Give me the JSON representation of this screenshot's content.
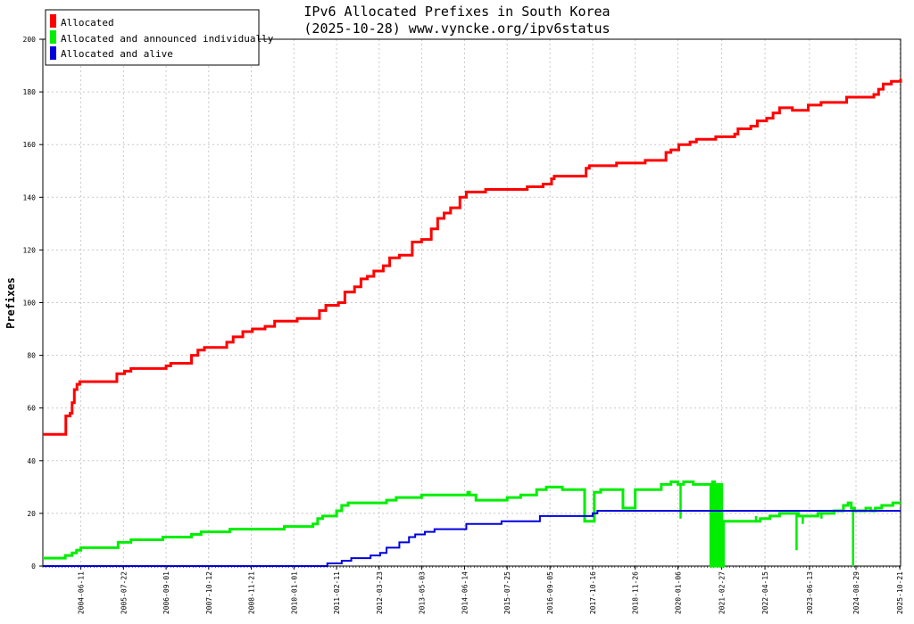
{
  "chart_data": {
    "type": "line",
    "title": "IPv6 Allocated Prefixes in South Korea",
    "subtitle": "(2025-10-28) www.vyncke.org/ipv6status",
    "xlabel": "",
    "ylabel": "Prefixes",
    "ylim": [
      0,
      200
    ],
    "yticks": [
      0,
      20,
      40,
      60,
      80,
      100,
      120,
      140,
      160,
      180,
      200
    ],
    "xlim": [
      "2003-06-15",
      "2025-10-28"
    ],
    "xticks": [
      "2004-06-11",
      "2005-07-22",
      "2006-09-01",
      "2007-10-12",
      "2008-11-21",
      "2010-01-01",
      "2011-02-11",
      "2012-03-23",
      "2013-05-03",
      "2014-06-14",
      "2015-07-25",
      "2016-09-05",
      "2017-10-16",
      "2018-11-26",
      "2020-01-06",
      "2021-02-27",
      "2022-04-15",
      "2023-06-13",
      "2024-08-29",
      "2025-10-21"
    ],
    "grid": true,
    "legend_position": "top-left",
    "series": [
      {
        "name": "Allocated",
        "color": "#ff0000",
        "points": [
          [
            "2003-06-15",
            50
          ],
          [
            "2004-01-10",
            50
          ],
          [
            "2004-01-20",
            57
          ],
          [
            "2004-03-01",
            58
          ],
          [
            "2004-03-20",
            62
          ],
          [
            "2004-04-10",
            67
          ],
          [
            "2004-05-05",
            69
          ],
          [
            "2004-06-01",
            70
          ],
          [
            "2005-04-01",
            70
          ],
          [
            "2005-05-20",
            73
          ],
          [
            "2005-08-01",
            74
          ],
          [
            "2005-10-01",
            75
          ],
          [
            "2006-08-01",
            75
          ],
          [
            "2006-09-01",
            76
          ],
          [
            "2006-10-15",
            77
          ],
          [
            "2007-03-01",
            77
          ],
          [
            "2007-05-01",
            80
          ],
          [
            "2007-07-01",
            82
          ],
          [
            "2007-09-01",
            83
          ],
          [
            "2008-02-01",
            83
          ],
          [
            "2008-04-01",
            85
          ],
          [
            "2008-06-01",
            87
          ],
          [
            "2008-09-01",
            89
          ],
          [
            "2008-12-01",
            90
          ],
          [
            "2009-04-01",
            91
          ],
          [
            "2009-07-01",
            93
          ],
          [
            "2010-01-01",
            93
          ],
          [
            "2010-02-01",
            94
          ],
          [
            "2010-07-01",
            94
          ],
          [
            "2010-09-01",
            97
          ],
          [
            "2010-11-01",
            99
          ],
          [
            "2011-03-01",
            100
          ],
          [
            "2011-05-01",
            104
          ],
          [
            "2011-08-01",
            106
          ],
          [
            "2011-10-01",
            109
          ],
          [
            "2011-12-01",
            110
          ],
          [
            "2012-02-01",
            112
          ],
          [
            "2012-05-01",
            114
          ],
          [
            "2012-07-01",
            117
          ],
          [
            "2012-10-01",
            118
          ],
          [
            "2013-02-01",
            123
          ],
          [
            "2013-05-01",
            124
          ],
          [
            "2013-08-01",
            128
          ],
          [
            "2013-10-01",
            132
          ],
          [
            "2013-12-01",
            134
          ],
          [
            "2014-02-01",
            136
          ],
          [
            "2014-05-01",
            140
          ],
          [
            "2014-07-01",
            142
          ],
          [
            "2015-01-01",
            143
          ],
          [
            "2016-02-01",
            144
          ],
          [
            "2016-07-01",
            145
          ],
          [
            "2016-09-20",
            147
          ],
          [
            "2016-10-15",
            148
          ],
          [
            "2017-06-01",
            148
          ],
          [
            "2017-08-15",
            151
          ],
          [
            "2017-09-15",
            152
          ],
          [
            "2018-06-01",
            153
          ],
          [
            "2019-03-01",
            154
          ],
          [
            "2019-08-01",
            154
          ],
          [
            "2019-09-15",
            157
          ],
          [
            "2019-11-01",
            158
          ],
          [
            "2020-01-15",
            160
          ],
          [
            "2020-05-01",
            161
          ],
          [
            "2020-07-01",
            162
          ],
          [
            "2021-01-01",
            163
          ],
          [
            "2021-07-01",
            164
          ],
          [
            "2021-08-01",
            166
          ],
          [
            "2021-12-01",
            167
          ],
          [
            "2022-02-01",
            169
          ],
          [
            "2022-05-01",
            170
          ],
          [
            "2022-07-01",
            172
          ],
          [
            "2022-09-01",
            174
          ],
          [
            "2023-01-01",
            173
          ],
          [
            "2023-06-01",
            175
          ],
          [
            "2023-10-01",
            176
          ],
          [
            "2024-04-01",
            176
          ],
          [
            "2024-06-01",
            178
          ],
          [
            "2025-01-01",
            178
          ],
          [
            "2025-02-15",
            179
          ],
          [
            "2025-04-01",
            181
          ],
          [
            "2025-05-15",
            183
          ],
          [
            "2025-08-01",
            184
          ],
          [
            "2025-10-28",
            185
          ]
        ]
      },
      {
        "name": "Allocated and announced individually",
        "color": "#00ee00",
        "points": [
          [
            "2003-06-15",
            3
          ],
          [
            "2003-12-01",
            3
          ],
          [
            "2004-01-15",
            4
          ],
          [
            "2004-03-20",
            5
          ],
          [
            "2004-05-01",
            6
          ],
          [
            "2004-06-11",
            7
          ],
          [
            "2005-04-01",
            7
          ],
          [
            "2005-06-01",
            9
          ],
          [
            "2005-10-01",
            10
          ],
          [
            "2006-08-01",
            11
          ],
          [
            "2007-05-01",
            12
          ],
          [
            "2007-08-01",
            13
          ],
          [
            "2008-05-01",
            14
          ],
          [
            "2009-06-01",
            14
          ],
          [
            "2009-10-01",
            15
          ],
          [
            "2010-06-01",
            15
          ],
          [
            "2010-07-01",
            16
          ],
          [
            "2010-08-15",
            18
          ],
          [
            "2010-10-01",
            19
          ],
          [
            "2011-02-11",
            21
          ],
          [
            "2011-04-01",
            23
          ],
          [
            "2011-06-01",
            24
          ],
          [
            "2012-04-01",
            24
          ],
          [
            "2012-06-01",
            25
          ],
          [
            "2012-09-01",
            26
          ],
          [
            "2013-03-01",
            26
          ],
          [
            "2013-05-01",
            27
          ],
          [
            "2014-06-14",
            27
          ],
          [
            "2014-07-15",
            28
          ],
          [
            "2014-08-01",
            27
          ],
          [
            "2014-10-01",
            25
          ],
          [
            "2015-07-25",
            26
          ],
          [
            "2015-12-01",
            27
          ],
          [
            "2016-03-01",
            27
          ],
          [
            "2016-05-01",
            29
          ],
          [
            "2016-08-01",
            30
          ],
          [
            "2016-10-01",
            30
          ],
          [
            "2017-01-01",
            29
          ],
          [
            "2017-07-01",
            29
          ],
          [
            "2017-08-01",
            17
          ],
          [
            "2017-10-16",
            17
          ],
          [
            "2017-11-01",
            28
          ],
          [
            "2018-01-01",
            29
          ],
          [
            "2018-07-01",
            29
          ],
          [
            "2018-08-01",
            22
          ],
          [
            "2018-11-01",
            22
          ],
          [
            "2018-11-26",
            29
          ],
          [
            "2019-06-01",
            29
          ],
          [
            "2019-08-01",
            31
          ],
          [
            "2019-11-01",
            32
          ],
          [
            "2020-01-06",
            31
          ],
          [
            "2020-03-01",
            32
          ],
          [
            "2020-06-01",
            31
          ],
          [
            "2020-09-01",
            31
          ],
          [
            "2020-11-15",
            0
          ],
          [
            "2020-12-01",
            32
          ],
          [
            "2020-12-20",
            0
          ],
          [
            "2021-01-05",
            31
          ],
          [
            "2021-01-20",
            0
          ],
          [
            "2021-02-10",
            31
          ],
          [
            "2021-02-27",
            0
          ],
          [
            "2021-03-15",
            17
          ],
          [
            "2021-06-01",
            17
          ],
          [
            "2021-08-01",
            17
          ],
          [
            "2021-10-01",
            17
          ],
          [
            "2022-01-01",
            17
          ],
          [
            "2022-03-01",
            18
          ],
          [
            "2022-06-01",
            19
          ],
          [
            "2022-09-01",
            20
          ],
          [
            "2022-12-01",
            20
          ],
          [
            "2023-03-01",
            19
          ],
          [
            "2023-06-13",
            19
          ],
          [
            "2023-09-01",
            20
          ],
          [
            "2023-12-01",
            20
          ],
          [
            "2024-02-01",
            21
          ],
          [
            "2024-05-01",
            23
          ],
          [
            "2024-06-15",
            24
          ],
          [
            "2024-07-15",
            22
          ],
          [
            "2024-08-15",
            21
          ],
          [
            "2024-10-01",
            21
          ],
          [
            "2024-12-01",
            22
          ],
          [
            "2025-01-15",
            21
          ],
          [
            "2025-03-01",
            22
          ],
          [
            "2025-05-01",
            23
          ],
          [
            "2025-07-01",
            23
          ],
          [
            "2025-08-15",
            24
          ],
          [
            "2025-10-28",
            24
          ]
        ],
        "dips": [
          [
            "2020-02-01",
            18
          ],
          [
            "2022-01-20",
            19
          ],
          [
            "2023-02-10",
            6
          ],
          [
            "2023-04-10",
            16
          ],
          [
            "2023-10-05",
            18
          ],
          [
            "2024-08-01",
            0
          ]
        ]
      },
      {
        "name": "Allocated and alive",
        "color": "#0000dd",
        "points": [
          [
            "2003-06-15",
            0
          ],
          [
            "2010-11-01",
            0
          ],
          [
            "2010-11-15",
            1
          ],
          [
            "2011-04-01",
            2
          ],
          [
            "2011-07-01",
            3
          ],
          [
            "2012-01-01",
            4
          ],
          [
            "2012-04-01",
            5
          ],
          [
            "2012-06-01",
            7
          ],
          [
            "2012-10-01",
            9
          ],
          [
            "2013-01-01",
            11
          ],
          [
            "2013-03-01",
            12
          ],
          [
            "2013-06-01",
            13
          ],
          [
            "2013-09-01",
            14
          ],
          [
            "2014-07-01",
            16
          ],
          [
            "2015-06-01",
            17
          ],
          [
            "2016-06-01",
            19
          ],
          [
            "2017-10-16",
            20
          ],
          [
            "2017-12-01",
            21
          ],
          [
            "2025-10-28",
            21
          ]
        ]
      }
    ]
  }
}
